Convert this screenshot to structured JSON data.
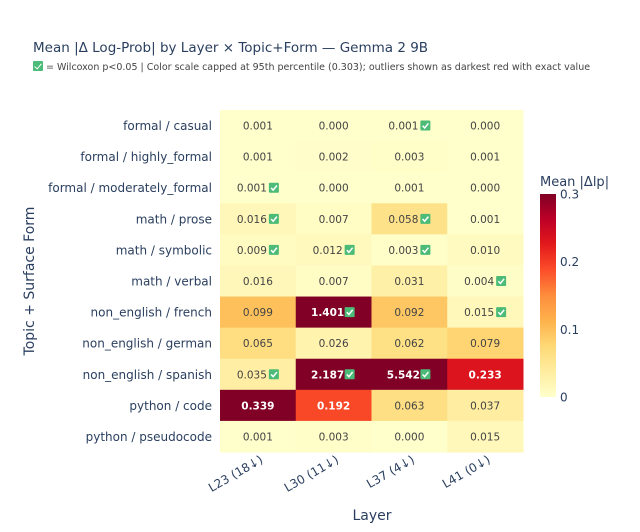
{
  "chart_data": {
    "type": "heatmap",
    "title": "Mean |Δ Log-Prob| by Layer × Topic+Form — Gemma 2 9B",
    "subtitle": "= Wilcoxon p<0.05  |  Color scale capped at 95th percentile (0.303); outliers shown as darkest red with exact value",
    "subtitle_icon": "check-mark-icon",
    "xlabel": "Layer",
    "ylabel": "Topic + Surface Form",
    "x_categories": [
      "L23 (18↓)",
      "L30 (11↓)",
      "L37 (4↓)",
      "L41 (0↓)"
    ],
    "y_categories": [
      "formal / casual",
      "formal / highly_formal",
      "formal / moderately_formal",
      "math / prose",
      "math / symbolic",
      "math / verbal",
      "non_english / french",
      "non_english / german",
      "non_english / spanish",
      "python / code",
      "python / pseudocode"
    ],
    "values": [
      [
        0.001,
        0.0,
        0.001,
        0.0
      ],
      [
        0.001,
        0.002,
        0.003,
        0.001
      ],
      [
        0.001,
        0.0,
        0.001,
        0.0
      ],
      [
        0.016,
        0.007,
        0.058,
        0.001
      ],
      [
        0.009,
        0.012,
        0.003,
        0.01
      ],
      [
        0.016,
        0.007,
        0.031,
        0.004
      ],
      [
        0.099,
        1.401,
        0.092,
        0.015
      ],
      [
        0.065,
        0.026,
        0.062,
        0.079
      ],
      [
        0.035,
        2.187,
        5.542,
        0.233
      ],
      [
        0.339,
        0.192,
        0.063,
        0.037
      ],
      [
        0.001,
        0.003,
        0.0,
        0.015
      ]
    ],
    "labels": [
      [
        "0.001",
        "0.000",
        "0.001",
        "0.000"
      ],
      [
        "0.001",
        "0.002",
        "0.003",
        "0.001"
      ],
      [
        "0.001",
        "0.000",
        "0.001",
        "0.000"
      ],
      [
        "0.016",
        "0.007",
        "0.058",
        "0.001"
      ],
      [
        "0.009",
        "0.012",
        "0.003",
        "0.010"
      ],
      [
        "0.016",
        "0.007",
        "0.031",
        "0.004"
      ],
      [
        "0.099",
        "1.401",
        "0.092",
        "0.015"
      ],
      [
        "0.065",
        "0.026",
        "0.062",
        "0.079"
      ],
      [
        "0.035",
        "2.187",
        "5.542",
        "0.233"
      ],
      [
        "0.339",
        "0.192",
        "0.063",
        "0.037"
      ],
      [
        "0.001",
        "0.003",
        "0.000",
        "0.015"
      ]
    ],
    "significant": [
      [
        false,
        false,
        true,
        false
      ],
      [
        false,
        false,
        false,
        false
      ],
      [
        true,
        false,
        false,
        false
      ],
      [
        true,
        false,
        true,
        false
      ],
      [
        true,
        true,
        true,
        false
      ],
      [
        false,
        false,
        false,
        true
      ],
      [
        false,
        true,
        false,
        true
      ],
      [
        false,
        false,
        false,
        false
      ],
      [
        true,
        true,
        true,
        false
      ],
      [
        false,
        false,
        false,
        false
      ],
      [
        false,
        false,
        false,
        false
      ]
    ],
    "zlim": [
      0,
      0.3
    ],
    "colorbar": {
      "title": "Mean |Δlp|",
      "ticks": [
        0,
        0.1,
        0.2,
        0.3
      ],
      "tick_labels": [
        "0",
        "0.1",
        "0.2",
        "0.3"
      ]
    },
    "colorscale": [
      "#ffffcc",
      "#ffeda0",
      "#fed976",
      "#feb24c",
      "#fd8d3c",
      "#fc4e2a",
      "#e31a1c",
      "#bd0026",
      "#800026"
    ],
    "significance_color": "#4cbb78"
  }
}
